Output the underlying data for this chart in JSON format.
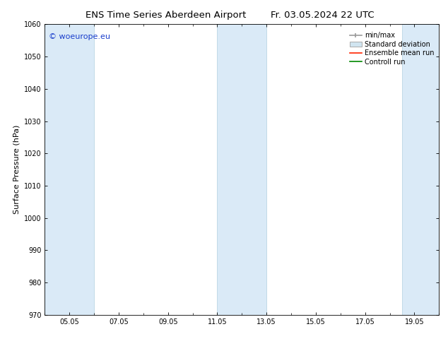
{
  "title_left": "ENS Time Series Aberdeen Airport",
  "title_right": "Fr. 03.05.2024 22 UTC",
  "ylabel": "Surface Pressure (hPa)",
  "ylim": [
    970,
    1060
  ],
  "yticks": [
    970,
    980,
    990,
    1000,
    1010,
    1020,
    1030,
    1040,
    1050,
    1060
  ],
  "xlim_start": 0.0,
  "xlim_end": 16.0,
  "xtick_positions": [
    1,
    3,
    5,
    7,
    9,
    11,
    13,
    15
  ],
  "xtick_labels": [
    "05.05",
    "07.05",
    "09.05",
    "11.05",
    "13.05",
    "15.05",
    "17.05",
    "19.05"
  ],
  "band_positions": [
    {
      "xmin": 0.0,
      "xmax": 2.0
    },
    {
      "xmin": 7.0,
      "xmax": 9.0
    },
    {
      "xmin": 14.5,
      "xmax": 16.0
    }
  ],
  "band_color": "#daeaf7",
  "band_edge_color": "#b0cfe0",
  "background_color": "#ffffff",
  "watermark_text": "© woeurope.eu",
  "watermark_color": "#1a3ecc",
  "legend_labels": [
    "min/max",
    "Standard deviation",
    "Ensemble mean run",
    "Controll run"
  ],
  "minmax_color": "#999999",
  "std_facecolor": "#d0e4f0",
  "std_edgecolor": "#aaaaaa",
  "ens_color": "#ff2200",
  "ctrl_color": "#008800",
  "title_fontsize": 9.5,
  "label_fontsize": 8,
  "tick_fontsize": 7,
  "legend_fontsize": 7,
  "watermark_fontsize": 8
}
